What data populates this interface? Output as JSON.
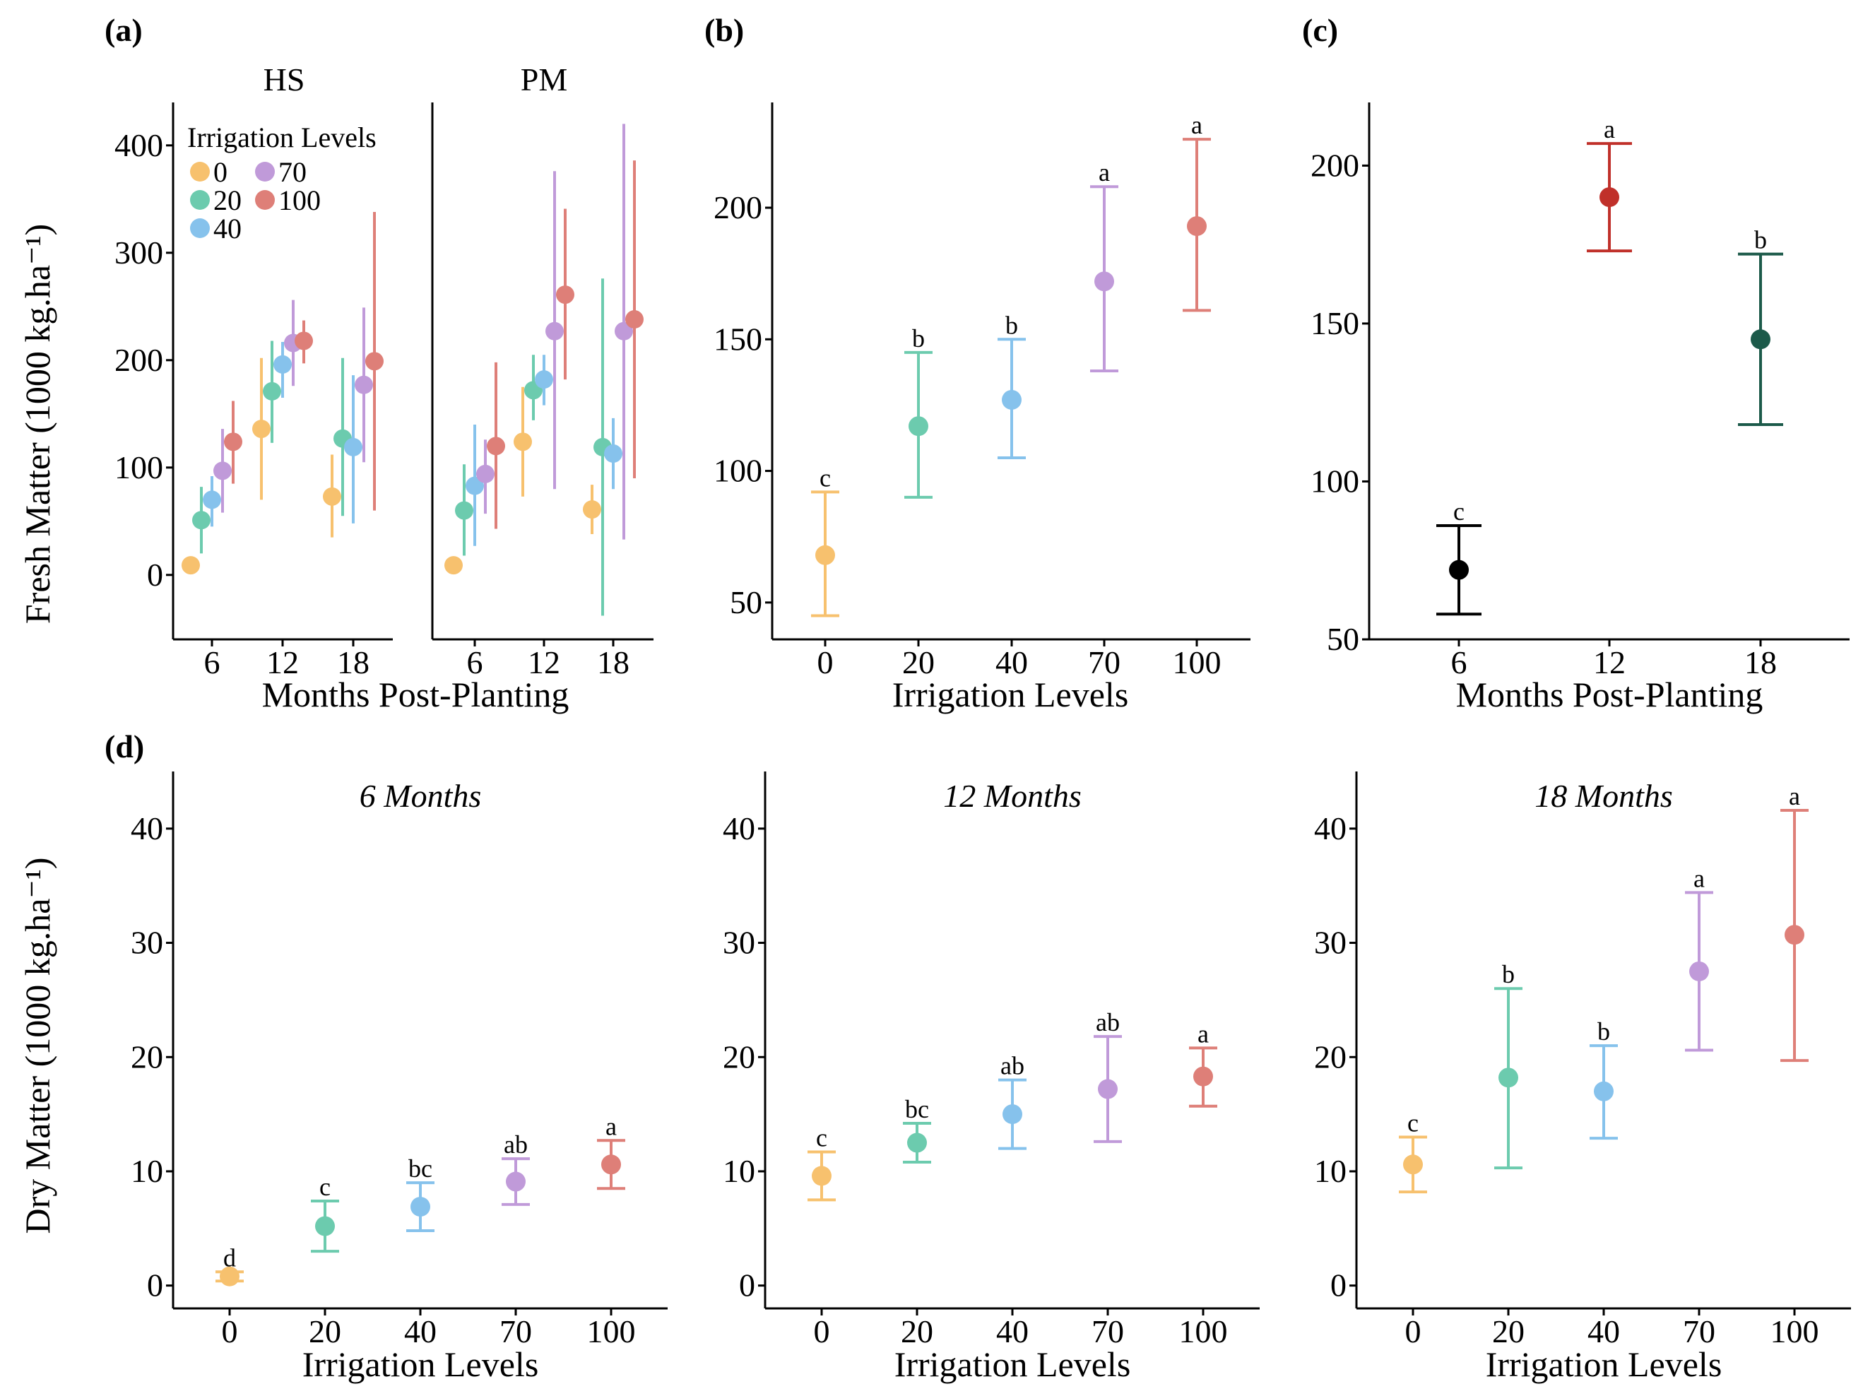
{
  "colors": {
    "0": "#F7C16E",
    "20": "#6CCBAE",
    "40": "#86C2EC",
    "70": "#C09AD9",
    "100": "#DE7F78",
    "black": "#000000"
  },
  "panels": {
    "a": {
      "label": "(a)",
      "ylabel": "Fresh Matter (1000 kg.ha⁻¹)",
      "xlabel": "Months Post-Planting",
      "facets": [
        "HS",
        "PM"
      ],
      "legend": {
        "title": "Irrigation Levels",
        "items": [
          "0",
          "20",
          "40",
          "70",
          "100"
        ]
      }
    },
    "b": {
      "label": "(b)",
      "xlabel": "Irrigation Levels"
    },
    "c": {
      "label": "(c)",
      "xlabel": "Months Post-Planting"
    },
    "d": {
      "label": "(d)",
      "ylabel": "Dry Matter (1000 kg.ha⁻¹)",
      "xlabel": "Irrigation Levels"
    }
  },
  "chart_data": [
    {
      "id": "a",
      "type": "scatter",
      "errorbars": true,
      "ylim": [
        -60,
        440
      ],
      "yticks": [
        0,
        100,
        200,
        300,
        400
      ],
      "xticks": [
        "6",
        "12",
        "18"
      ],
      "series_names": [
        "0",
        "20",
        "40",
        "70",
        "100"
      ],
      "facets": [
        {
          "name": "HS",
          "groups": [
            {
              "month": "6",
              "points": [
                {
                  "level": "0",
                  "mean": 9,
                  "lo": 9,
                  "hi": 9
                },
                {
                  "level": "20",
                  "mean": 51,
                  "lo": 20,
                  "hi": 82
                },
                {
                  "level": "40",
                  "mean": 70,
                  "lo": 45,
                  "hi": 92
                },
                {
                  "level": "70",
                  "mean": 97,
                  "lo": 58,
                  "hi": 136
                },
                {
                  "level": "100",
                  "mean": 124,
                  "lo": 85,
                  "hi": 162
                }
              ]
            },
            {
              "month": "12",
              "points": [
                {
                  "level": "0",
                  "mean": 136,
                  "lo": 70,
                  "hi": 202
                },
                {
                  "level": "20",
                  "mean": 171,
                  "lo": 123,
                  "hi": 218
                },
                {
                  "level": "40",
                  "mean": 196,
                  "lo": 165,
                  "hi": 217
                },
                {
                  "level": "70",
                  "mean": 216,
                  "lo": 176,
                  "hi": 256
                },
                {
                  "level": "100",
                  "mean": 218,
                  "lo": 197,
                  "hi": 237
                }
              ]
            },
            {
              "month": "18",
              "points": [
                {
                  "level": "0",
                  "mean": 73,
                  "lo": 35,
                  "hi": 112
                },
                {
                  "level": "20",
                  "mean": 127,
                  "lo": 55,
                  "hi": 202
                },
                {
                  "level": "40",
                  "mean": 119,
                  "lo": 48,
                  "hi": 186
                },
                {
                  "level": "70",
                  "mean": 177,
                  "lo": 105,
                  "hi": 249
                },
                {
                  "level": "100",
                  "mean": 199,
                  "lo": 60,
                  "hi": 338
                }
              ]
            }
          ]
        },
        {
          "name": "PM",
          "groups": [
            {
              "month": "6",
              "points": [
                {
                  "level": "0",
                  "mean": 9,
                  "lo": 9,
                  "hi": 9
                },
                {
                  "level": "20",
                  "mean": 60,
                  "lo": 18,
                  "hi": 103
                },
                {
                  "level": "40",
                  "mean": 83,
                  "lo": 27,
                  "hi": 140
                },
                {
                  "level": "70",
                  "mean": 94,
                  "lo": 57,
                  "hi": 126
                },
                {
                  "level": "100",
                  "mean": 120,
                  "lo": 43,
                  "hi": 198
                }
              ]
            },
            {
              "month": "12",
              "points": [
                {
                  "level": "0",
                  "mean": 124,
                  "lo": 73,
                  "hi": 175
                },
                {
                  "level": "20",
                  "mean": 172,
                  "lo": 144,
                  "hi": 205
                },
                {
                  "level": "40",
                  "mean": 182,
                  "lo": 158,
                  "hi": 205
                },
                {
                  "level": "70",
                  "mean": 227,
                  "lo": 80,
                  "hi": 376
                },
                {
                  "level": "100",
                  "mean": 261,
                  "lo": 182,
                  "hi": 341
                }
              ]
            },
            {
              "month": "18",
              "points": [
                {
                  "level": "0",
                  "mean": 61,
                  "lo": 38,
                  "hi": 84
                },
                {
                  "level": "20",
                  "mean": 119,
                  "lo": -38,
                  "hi": 276
                },
                {
                  "level": "40",
                  "mean": 113,
                  "lo": 80,
                  "hi": 146
                },
                {
                  "level": "70",
                  "mean": 227,
                  "lo": 33,
                  "hi": 420
                },
                {
                  "level": "100",
                  "mean": 238,
                  "lo": 90,
                  "hi": 386
                }
              ]
            }
          ]
        }
      ]
    },
    {
      "id": "b",
      "type": "scatter",
      "errorbars": true,
      "ylim": [
        36,
        240
      ],
      "yticks": [
        50,
        100,
        150,
        200
      ],
      "categories": [
        "0",
        "20",
        "40",
        "70",
        "100"
      ],
      "points": [
        {
          "x": "0",
          "mean": 68,
          "lo": 45,
          "hi": 92,
          "letter": "c"
        },
        {
          "x": "20",
          "mean": 117,
          "lo": 90,
          "hi": 145,
          "letter": "b"
        },
        {
          "x": "40",
          "mean": 127,
          "lo": 105,
          "hi": 150,
          "letter": "b"
        },
        {
          "x": "70",
          "mean": 172,
          "lo": 138,
          "hi": 208,
          "letter": "a"
        },
        {
          "x": "100",
          "mean": 193,
          "lo": 161,
          "hi": 226,
          "letter": "a"
        }
      ]
    },
    {
      "id": "c",
      "type": "scatter",
      "errorbars": true,
      "ylim": [
        50,
        220
      ],
      "yticks": [
        50,
        100,
        150,
        200
      ],
      "categories": [
        "6",
        "12",
        "18"
      ],
      "points": [
        {
          "x": "6",
          "mean": 72,
          "lo": 58,
          "hi": 86,
          "letter": "c",
          "color": "#000000"
        },
        {
          "x": "12",
          "mean": 190,
          "lo": 173,
          "hi": 207,
          "letter": "a",
          "color": "#C0302A"
        },
        {
          "x": "18",
          "mean": 145,
          "lo": 118,
          "hi": 172,
          "letter": "b",
          "color": "#1C5A4A"
        }
      ]
    },
    {
      "id": "d",
      "type": "scatter",
      "errorbars": true,
      "ylim": [
        -2,
        45
      ],
      "yticks": [
        0,
        10,
        20,
        30,
        40
      ],
      "categories": [
        "0",
        "20",
        "40",
        "70",
        "100"
      ],
      "facets": [
        {
          "title": "6 Months",
          "points": [
            {
              "x": "0",
              "mean": 0.8,
              "lo": 0.4,
              "hi": 1.2,
              "letter": "d"
            },
            {
              "x": "20",
              "mean": 5.2,
              "lo": 3.0,
              "hi": 7.4,
              "letter": "c"
            },
            {
              "x": "40",
              "mean": 6.9,
              "lo": 4.8,
              "hi": 9.0,
              "letter": "bc"
            },
            {
              "x": "70",
              "mean": 9.1,
              "lo": 7.1,
              "hi": 11.1,
              "letter": "ab"
            },
            {
              "x": "100",
              "mean": 10.6,
              "lo": 8.5,
              "hi": 12.7,
              "letter": "a"
            }
          ]
        },
        {
          "title": "12 Months",
          "points": [
            {
              "x": "0",
              "mean": 9.6,
              "lo": 7.5,
              "hi": 11.7,
              "letter": "c"
            },
            {
              "x": "20",
              "mean": 12.5,
              "lo": 10.8,
              "hi": 14.2,
              "letter": "bc"
            },
            {
              "x": "40",
              "mean": 15.0,
              "lo": 12.0,
              "hi": 18.0,
              "letter": "ab"
            },
            {
              "x": "70",
              "mean": 17.2,
              "lo": 12.6,
              "hi": 21.8,
              "letter": "ab"
            },
            {
              "x": "100",
              "mean": 18.3,
              "lo": 15.7,
              "hi": 20.8,
              "letter": "a"
            }
          ]
        },
        {
          "title": "18 Months",
          "points": [
            {
              "x": "0",
              "mean": 10.6,
              "lo": 8.2,
              "hi": 13.0,
              "letter": "c"
            },
            {
              "x": "20",
              "mean": 18.2,
              "lo": 10.3,
              "hi": 26.0,
              "letter": "b"
            },
            {
              "x": "40",
              "mean": 17.0,
              "lo": 12.9,
              "hi": 21.0,
              "letter": "b"
            },
            {
              "x": "70",
              "mean": 27.5,
              "lo": 20.6,
              "hi": 34.4,
              "letter": "a"
            },
            {
              "x": "100",
              "mean": 30.7,
              "lo": 19.7,
              "hi": 41.6,
              "letter": "a"
            }
          ]
        }
      ]
    }
  ]
}
